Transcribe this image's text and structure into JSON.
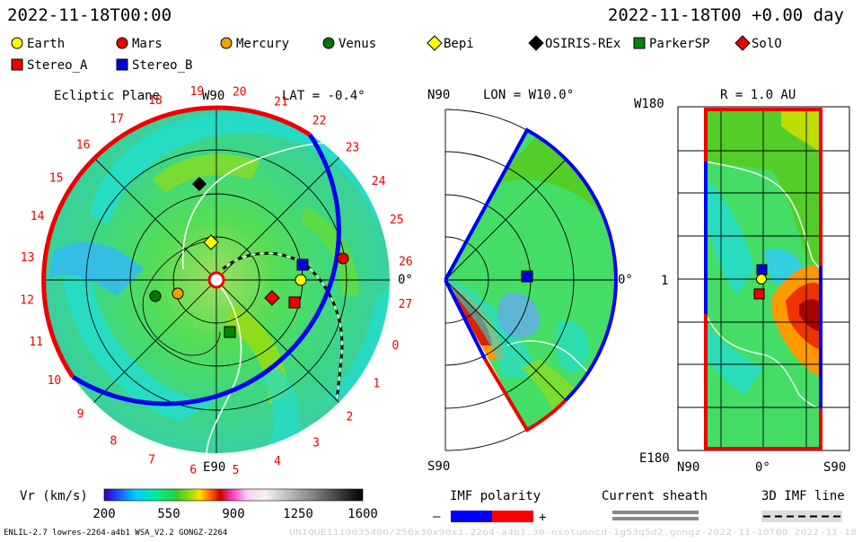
{
  "header": {
    "left_datetime": "2022-11-18T00:00",
    "right_datetime": "2022-11-18T00 +0.00 day"
  },
  "legend_bodies": [
    {
      "label": "Earth",
      "symbol": "circle",
      "color": "#ffff00"
    },
    {
      "label": "Mars",
      "symbol": "circle",
      "color": "#ee0000"
    },
    {
      "label": "Mercury",
      "symbol": "circle",
      "color": "#f2a000"
    },
    {
      "label": "Venus",
      "symbol": "circle",
      "color": "#007700"
    },
    {
      "label": "Bepi",
      "symbol": "diamond",
      "color": "#ffff00"
    },
    {
      "label": "OSIRIS-REx",
      "symbol": "diamond",
      "color": "#000000"
    },
    {
      "label": "ParkerSP",
      "symbol": "square",
      "color": "#008800"
    },
    {
      "label": "SolO",
      "symbol": "diamond",
      "color": "#ee0000"
    },
    {
      "label": "Stereo_A",
      "symbol": "square",
      "color": "#ee0000"
    },
    {
      "label": "Stereo_B",
      "symbol": "square",
      "color": "#0000dd"
    }
  ],
  "panel_ecliptic": {
    "title": "Ecliptic Plane",
    "top_label": "W90",
    "lat_label": "LAT = -0.4°",
    "right_label": "0°",
    "bottom_label": "E90",
    "rotation_labels": [
      "20",
      "21",
      "22",
      "23",
      "24",
      "25",
      "26",
      "27",
      "0",
      "1",
      "2",
      "3",
      "4",
      "5",
      "6",
      "7",
      "8",
      "9",
      "10",
      "11",
      "12",
      "13",
      "14",
      "15",
      "16",
      "17",
      "18",
      "19"
    ]
  },
  "panel_meridional": {
    "top_left_label": "N90",
    "lon_label": "LON = W10.0°",
    "right_label": "0°",
    "bottom_label": "S90"
  },
  "panel_radius": {
    "title": "R = 1.0 AU",
    "top_left_label": "W180",
    "middle_label": "1",
    "bottom_left_label": "E180",
    "x_labels": [
      "N90",
      "0°",
      "S90"
    ]
  },
  "colorbar": {
    "label": "Vr (km/s)",
    "ticks": [
      "200",
      "550",
      "900",
      "1250",
      "1600"
    ]
  },
  "imf_polarity": {
    "title": "IMF polarity",
    "minus": "–",
    "plus": "+",
    "neg_color": "#0000ff",
    "pos_color": "#ff0000"
  },
  "current_sheath": {
    "title": "Current sheath"
  },
  "imf_line": {
    "title": "3D IMF line"
  },
  "footer": {
    "left": "ENLIL-2.7 lowres-2264-a4b1 WSA_V2.2 GONGZ-2264",
    "right": "UNIQUE1119035406/256x30x90x1.2264-a4b1.30-nsotumncd-1g53q5d2.gongz-2022-11-18T00   2022-11-18"
  }
}
